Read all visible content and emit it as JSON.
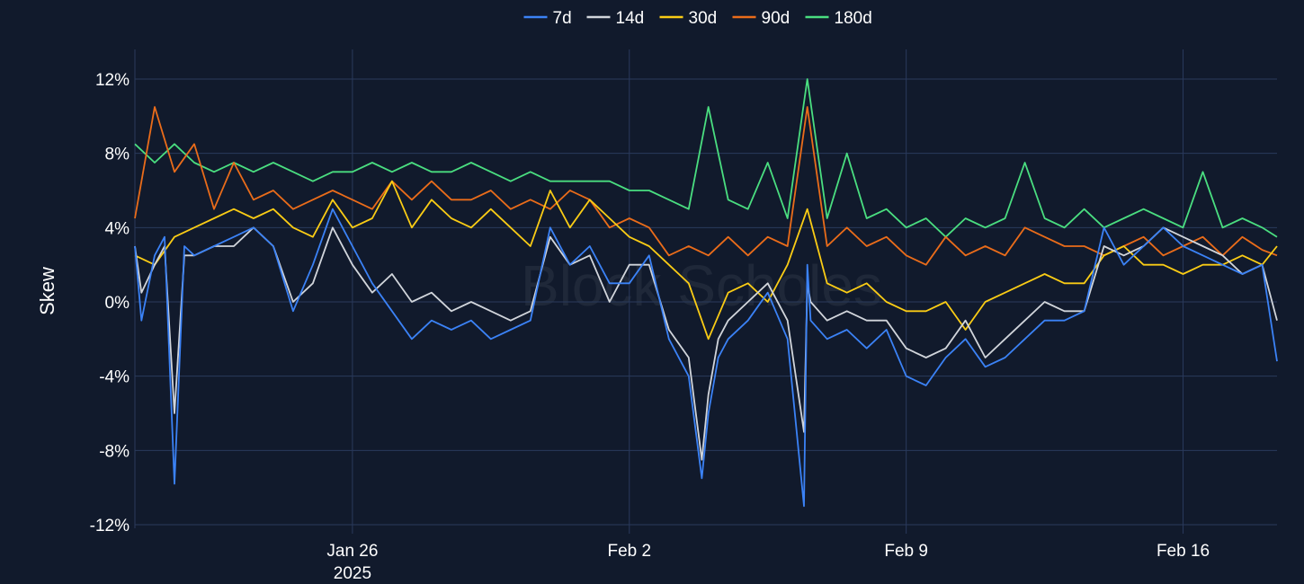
{
  "chart_data": {
    "type": "line",
    "title": "",
    "xlabel": "",
    "ylabel": "Skew",
    "watermark": "Block Scholes",
    "y_unit": "%",
    "ylim": [
      -12,
      12
    ],
    "y_ticks": [
      12,
      8,
      4,
      0,
      -4,
      -8,
      -12
    ],
    "y_tick_labels": [
      "12%",
      "8%",
      "4%",
      "0%",
      "-4%",
      "-8%",
      "-12%"
    ],
    "x_range": [
      "2025-01-20T12:00",
      "2025-02-18T09:00"
    ],
    "x_ticks": [
      {
        "date": "2025-01-26",
        "label": "Jan 26",
        "sublabel": "2025"
      },
      {
        "date": "2025-02-02",
        "label": "Feb 2",
        "sublabel": ""
      },
      {
        "date": "2025-02-09",
        "label": "Feb 9",
        "sublabel": ""
      },
      {
        "date": "2025-02-16",
        "label": "Feb 16",
        "sublabel": ""
      }
    ],
    "grid": true,
    "legend_position": "top-center",
    "colors": {
      "background": "#111a2c",
      "grid": "#2a3a5c"
    },
    "series": [
      {
        "name": "7d",
        "color": "#3b82f6",
        "x": [
          "2025-01-20T12:00",
          "2025-01-20T16:00",
          "2025-01-21T00:00",
          "2025-01-21T06:00",
          "2025-01-21T12:00",
          "2025-01-21T18:00",
          "2025-01-22T00:00",
          "2025-01-22T12:00",
          "2025-01-23T00:00",
          "2025-01-23T12:00",
          "2025-01-24T00:00",
          "2025-01-24T12:00",
          "2025-01-25T00:00",
          "2025-01-25T12:00",
          "2025-01-26T00:00",
          "2025-01-26T12:00",
          "2025-01-27T00:00",
          "2025-01-27T12:00",
          "2025-01-28T00:00",
          "2025-01-28T12:00",
          "2025-01-29T00:00",
          "2025-01-29T12:00",
          "2025-01-30T00:00",
          "2025-01-30T12:00",
          "2025-01-31T00:00",
          "2025-01-31T12:00",
          "2025-02-01T00:00",
          "2025-02-01T12:00",
          "2025-02-02T00:00",
          "2025-02-02T12:00",
          "2025-02-03T00:00",
          "2025-02-03T12:00",
          "2025-02-03T20:00",
          "2025-02-04T00:00",
          "2025-02-04T06:00",
          "2025-02-04T12:00",
          "2025-02-05T00:00",
          "2025-02-05T12:00",
          "2025-02-06T00:00",
          "2025-02-06T10:00",
          "2025-02-06T12:00",
          "2025-02-06T14:00",
          "2025-02-07T00:00",
          "2025-02-07T12:00",
          "2025-02-08T00:00",
          "2025-02-08T12:00",
          "2025-02-09T00:00",
          "2025-02-09T12:00",
          "2025-02-10T00:00",
          "2025-02-10T12:00",
          "2025-02-11T00:00",
          "2025-02-11T12:00",
          "2025-02-12T00:00",
          "2025-02-12T12:00",
          "2025-02-13T00:00",
          "2025-02-13T12:00",
          "2025-02-14T00:00",
          "2025-02-14T12:00",
          "2025-02-15T00:00",
          "2025-02-15T12:00",
          "2025-02-16T00:00",
          "2025-02-16T12:00",
          "2025-02-17T00:00",
          "2025-02-17T12:00",
          "2025-02-18T00:00",
          "2025-02-18T09:00"
        ],
        "values": [
          3.0,
          -1.0,
          2.5,
          3.5,
          -9.8,
          3.0,
          2.5,
          3.0,
          3.5,
          4.0,
          3.0,
          -0.5,
          2.0,
          5.0,
          3.0,
          1.0,
          -0.5,
          -2.0,
          -1.0,
          -1.5,
          -1.0,
          -2.0,
          -1.5,
          -1.0,
          4.0,
          2.0,
          3.0,
          1.0,
          1.0,
          2.5,
          -2.0,
          -4.0,
          -9.5,
          -6.0,
          -3.0,
          -2.0,
          -1.0,
          0.5,
          -2.0,
          -11.0,
          2.0,
          -1.0,
          -2.0,
          -1.5,
          -2.5,
          -1.5,
          -4.0,
          -4.5,
          -3.0,
          -2.0,
          -3.5,
          -3.0,
          -2.0,
          -1.0,
          -1.0,
          -0.5,
          4.0,
          2.0,
          3.0,
          4.0,
          3.0,
          2.5,
          2.0,
          1.5,
          2.0,
          -3.2
        ]
      },
      {
        "name": "14d",
        "color": "#d1d5db",
        "x": [
          "2025-01-20T12:00",
          "2025-01-20T16:00",
          "2025-01-21T00:00",
          "2025-01-21T06:00",
          "2025-01-21T12:00",
          "2025-01-21T18:00",
          "2025-01-22T00:00",
          "2025-01-22T12:00",
          "2025-01-23T00:00",
          "2025-01-23T12:00",
          "2025-01-24T00:00",
          "2025-01-24T12:00",
          "2025-01-25T00:00",
          "2025-01-25T12:00",
          "2025-01-26T00:00",
          "2025-01-26T12:00",
          "2025-01-27T00:00",
          "2025-01-27T12:00",
          "2025-01-28T00:00",
          "2025-01-28T12:00",
          "2025-01-29T00:00",
          "2025-01-29T12:00",
          "2025-01-30T00:00",
          "2025-01-30T12:00",
          "2025-01-31T00:00",
          "2025-01-31T12:00",
          "2025-02-01T00:00",
          "2025-02-01T12:00",
          "2025-02-02T00:00",
          "2025-02-02T12:00",
          "2025-02-03T00:00",
          "2025-02-03T12:00",
          "2025-02-03T20:00",
          "2025-02-04T00:00",
          "2025-02-04T06:00",
          "2025-02-04T12:00",
          "2025-02-05T00:00",
          "2025-02-05T12:00",
          "2025-02-06T00:00",
          "2025-02-06T10:00",
          "2025-02-06T12:00",
          "2025-02-06T14:00",
          "2025-02-07T00:00",
          "2025-02-07T12:00",
          "2025-02-08T00:00",
          "2025-02-08T12:00",
          "2025-02-09T00:00",
          "2025-02-09T12:00",
          "2025-02-10T00:00",
          "2025-02-10T12:00",
          "2025-02-11T00:00",
          "2025-02-11T12:00",
          "2025-02-12T00:00",
          "2025-02-12T12:00",
          "2025-02-13T00:00",
          "2025-02-13T12:00",
          "2025-02-14T00:00",
          "2025-02-14T12:00",
          "2025-02-15T00:00",
          "2025-02-15T12:00",
          "2025-02-16T00:00",
          "2025-02-16T12:00",
          "2025-02-17T00:00",
          "2025-02-17T12:00",
          "2025-02-18T00:00",
          "2025-02-18T09:00"
        ],
        "values": [
          3.0,
          0.5,
          2.0,
          3.0,
          -6.0,
          2.5,
          2.5,
          3.0,
          3.0,
          4.0,
          3.0,
          0.0,
          1.0,
          4.0,
          2.0,
          0.5,
          1.5,
          0.0,
          0.5,
          -0.5,
          0.0,
          -0.5,
          -1.0,
          -0.5,
          3.5,
          2.0,
          2.5,
          0.0,
          2.0,
          2.0,
          -1.5,
          -3.0,
          -8.5,
          -5.0,
          -2.0,
          -1.0,
          0.0,
          1.0,
          -1.0,
          -7.0,
          1.0,
          0.0,
          -1.0,
          -0.5,
          -1.0,
          -1.0,
          -2.5,
          -3.0,
          -2.5,
          -1.0,
          -3.0,
          -2.0,
          -1.0,
          0.0,
          -0.5,
          -0.5,
          3.0,
          2.5,
          3.0,
          4.0,
          3.5,
          3.0,
          2.5,
          1.5,
          2.0,
          -1.0
        ]
      },
      {
        "name": "30d",
        "color": "#facc15",
        "x": [
          "2025-01-20T12:00",
          "2025-01-21T00:00",
          "2025-01-21T12:00",
          "2025-01-22T00:00",
          "2025-01-22T12:00",
          "2025-01-23T00:00",
          "2025-01-23T12:00",
          "2025-01-24T00:00",
          "2025-01-24T12:00",
          "2025-01-25T00:00",
          "2025-01-25T12:00",
          "2025-01-26T00:00",
          "2025-01-26T12:00",
          "2025-01-27T00:00",
          "2025-01-27T12:00",
          "2025-01-28T00:00",
          "2025-01-28T12:00",
          "2025-01-29T00:00",
          "2025-01-29T12:00",
          "2025-01-30T00:00",
          "2025-01-30T12:00",
          "2025-01-31T00:00",
          "2025-01-31T12:00",
          "2025-02-01T00:00",
          "2025-02-01T12:00",
          "2025-02-02T00:00",
          "2025-02-02T12:00",
          "2025-02-03T00:00",
          "2025-02-03T12:00",
          "2025-02-04T00:00",
          "2025-02-04T12:00",
          "2025-02-05T00:00",
          "2025-02-05T12:00",
          "2025-02-06T00:00",
          "2025-02-06T12:00",
          "2025-02-07T00:00",
          "2025-02-07T12:00",
          "2025-02-08T00:00",
          "2025-02-08T12:00",
          "2025-02-09T00:00",
          "2025-02-09T12:00",
          "2025-02-10T00:00",
          "2025-02-10T12:00",
          "2025-02-11T00:00",
          "2025-02-11T12:00",
          "2025-02-12T00:00",
          "2025-02-12T12:00",
          "2025-02-13T00:00",
          "2025-02-13T12:00",
          "2025-02-14T00:00",
          "2025-02-14T12:00",
          "2025-02-15T00:00",
          "2025-02-15T12:00",
          "2025-02-16T00:00",
          "2025-02-16T12:00",
          "2025-02-17T00:00",
          "2025-02-17T12:00",
          "2025-02-18T00:00",
          "2025-02-18T09:00"
        ],
        "values": [
          2.5,
          2.0,
          3.5,
          4.0,
          4.5,
          5.0,
          4.5,
          5.0,
          4.0,
          3.5,
          5.5,
          4.0,
          4.5,
          6.5,
          4.0,
          5.5,
          4.5,
          4.0,
          5.0,
          4.0,
          3.0,
          6.0,
          4.0,
          5.5,
          4.5,
          3.5,
          3.0,
          2.0,
          1.0,
          -2.0,
          0.5,
          1.0,
          0.0,
          2.0,
          5.0,
          1.0,
          0.5,
          1.0,
          0.0,
          -0.5,
          -0.5,
          0.0,
          -1.5,
          0.0,
          0.5,
          1.0,
          1.5,
          1.0,
          1.0,
          2.5,
          3.0,
          2.0,
          2.0,
          1.5,
          2.0,
          2.0,
          2.5,
          2.0,
          3.0
        ]
      },
      {
        "name": "90d",
        "color": "#ea6c1a",
        "x": [
          "2025-01-20T12:00",
          "2025-01-21T00:00",
          "2025-01-21T12:00",
          "2025-01-22T00:00",
          "2025-01-22T12:00",
          "2025-01-23T00:00",
          "2025-01-23T12:00",
          "2025-01-24T00:00",
          "2025-01-24T12:00",
          "2025-01-25T00:00",
          "2025-01-25T12:00",
          "2025-01-26T00:00",
          "2025-01-26T12:00",
          "2025-01-27T00:00",
          "2025-01-27T12:00",
          "2025-01-28T00:00",
          "2025-01-28T12:00",
          "2025-01-29T00:00",
          "2025-01-29T12:00",
          "2025-01-30T00:00",
          "2025-01-30T12:00",
          "2025-01-31T00:00",
          "2025-01-31T12:00",
          "2025-02-01T00:00",
          "2025-02-01T12:00",
          "2025-02-02T00:00",
          "2025-02-02T12:00",
          "2025-02-03T00:00",
          "2025-02-03T12:00",
          "2025-02-04T00:00",
          "2025-02-04T12:00",
          "2025-02-05T00:00",
          "2025-02-05T12:00",
          "2025-02-06T00:00",
          "2025-02-06T12:00",
          "2025-02-07T00:00",
          "2025-02-07T12:00",
          "2025-02-08T00:00",
          "2025-02-08T12:00",
          "2025-02-09T00:00",
          "2025-02-09T12:00",
          "2025-02-10T00:00",
          "2025-02-10T12:00",
          "2025-02-11T00:00",
          "2025-02-11T12:00",
          "2025-02-12T00:00",
          "2025-02-12T12:00",
          "2025-02-13T00:00",
          "2025-02-13T12:00",
          "2025-02-14T00:00",
          "2025-02-14T12:00",
          "2025-02-15T00:00",
          "2025-02-15T12:00",
          "2025-02-16T00:00",
          "2025-02-16T12:00",
          "2025-02-17T00:00",
          "2025-02-17T12:00",
          "2025-02-18T00:00",
          "2025-02-18T09:00"
        ],
        "values": [
          4.5,
          10.5,
          7.0,
          8.5,
          5.0,
          7.5,
          5.5,
          6.0,
          5.0,
          5.5,
          6.0,
          5.5,
          5.0,
          6.5,
          5.5,
          6.5,
          5.5,
          5.5,
          6.0,
          5.0,
          5.5,
          5.0,
          6.0,
          5.5,
          4.0,
          4.5,
          4.0,
          2.5,
          3.0,
          2.5,
          3.5,
          2.5,
          3.5,
          3.0,
          10.5,
          3.0,
          4.0,
          3.0,
          3.5,
          2.5,
          2.0,
          3.5,
          2.5,
          3.0,
          2.5,
          4.0,
          3.5,
          3.0,
          3.0,
          2.5,
          3.0,
          3.5,
          2.5,
          3.0,
          3.5,
          2.5,
          3.5,
          2.8,
          2.5
        ]
      },
      {
        "name": "180d",
        "color": "#4ade80",
        "x": [
          "2025-01-20T12:00",
          "2025-01-21T00:00",
          "2025-01-21T12:00",
          "2025-01-22T00:00",
          "2025-01-22T12:00",
          "2025-01-23T00:00",
          "2025-01-23T12:00",
          "2025-01-24T00:00",
          "2025-01-24T12:00",
          "2025-01-25T00:00",
          "2025-01-25T12:00",
          "2025-01-26T00:00",
          "2025-01-26T12:00",
          "2025-01-27T00:00",
          "2025-01-27T12:00",
          "2025-01-28T00:00",
          "2025-01-28T12:00",
          "2025-01-29T00:00",
          "2025-01-29T12:00",
          "2025-01-30T00:00",
          "2025-01-30T12:00",
          "2025-01-31T00:00",
          "2025-01-31T12:00",
          "2025-02-01T00:00",
          "2025-02-01T12:00",
          "2025-02-02T00:00",
          "2025-02-02T12:00",
          "2025-02-03T00:00",
          "2025-02-03T12:00",
          "2025-02-04T00:00",
          "2025-02-04T12:00",
          "2025-02-05T00:00",
          "2025-02-05T12:00",
          "2025-02-06T00:00",
          "2025-02-06T12:00",
          "2025-02-07T00:00",
          "2025-02-07T12:00",
          "2025-02-08T00:00",
          "2025-02-08T12:00",
          "2025-02-09T00:00",
          "2025-02-09T12:00",
          "2025-02-10T00:00",
          "2025-02-10T12:00",
          "2025-02-11T00:00",
          "2025-02-11T12:00",
          "2025-02-12T00:00",
          "2025-02-12T12:00",
          "2025-02-13T00:00",
          "2025-02-13T12:00",
          "2025-02-14T00:00",
          "2025-02-14T12:00",
          "2025-02-15T00:00",
          "2025-02-15T12:00",
          "2025-02-16T00:00",
          "2025-02-16T12:00",
          "2025-02-17T00:00",
          "2025-02-17T12:00",
          "2025-02-18T00:00",
          "2025-02-18T09:00"
        ],
        "values": [
          8.5,
          7.5,
          8.5,
          7.5,
          7.0,
          7.5,
          7.0,
          7.5,
          7.0,
          6.5,
          7.0,
          7.0,
          7.5,
          7.0,
          7.5,
          7.0,
          7.0,
          7.5,
          7.0,
          6.5,
          7.0,
          6.5,
          6.5,
          6.5,
          6.5,
          6.0,
          6.0,
          5.5,
          5.0,
          10.5,
          5.5,
          5.0,
          7.5,
          4.5,
          12.0,
          4.5,
          8.0,
          4.5,
          5.0,
          4.0,
          4.5,
          3.5,
          4.5,
          4.0,
          4.5,
          7.5,
          4.5,
          4.0,
          5.0,
          4.0,
          4.5,
          5.0,
          4.5,
          4.0,
          7.0,
          4.0,
          4.5,
          4.0,
          3.5
        ]
      }
    ]
  }
}
